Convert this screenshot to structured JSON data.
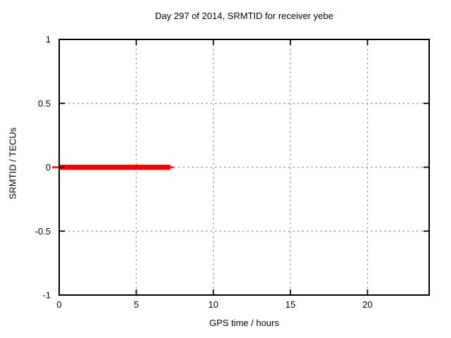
{
  "window": {
    "background": "#ffffff"
  },
  "chart_data": {
    "type": "line",
    "title": "Day 297 of 2014, SRMTID for receiver yebe",
    "xlabel": "GPS time / hours",
    "ylabel": "SRMTID / TECUs",
    "xlim": [
      0,
      24
    ],
    "ylim": [
      -1,
      1
    ],
    "grid": true,
    "grid_style": "dashed",
    "legend": "none",
    "xticks": [
      {
        "label": "0",
        "value": 0
      },
      {
        "label": "5",
        "value": 5
      },
      {
        "label": "10",
        "value": 10
      },
      {
        "label": "15",
        "value": 15
      },
      {
        "label": "20",
        "value": 20
      }
    ],
    "yticks": [
      {
        "label": "1",
        "value": 1
      },
      {
        "label": "0.5",
        "value": 0.5
      },
      {
        "label": "0",
        "value": 0
      },
      {
        "label": "-0.5",
        "value": -0.5
      },
      {
        "label": "-1",
        "value": -1
      }
    ],
    "series": [
      {
        "name": "SRMTID",
        "color": "#ff0000",
        "linewidth": 7,
        "x": [
          0,
          7.22
        ],
        "y": [
          0,
          0
        ]
      }
    ],
    "thin_marks": [
      {
        "x1": -0.46,
        "x2": 0,
        "y": 0
      },
      {
        "x1": 7.22,
        "x2": 7.42,
        "y": 0
      }
    ],
    "colors": {
      "axis": "#000000",
      "grid": "#a0a0a0",
      "text": "#000000",
      "series": "#ff0000",
      "background": "#ffffff"
    }
  }
}
